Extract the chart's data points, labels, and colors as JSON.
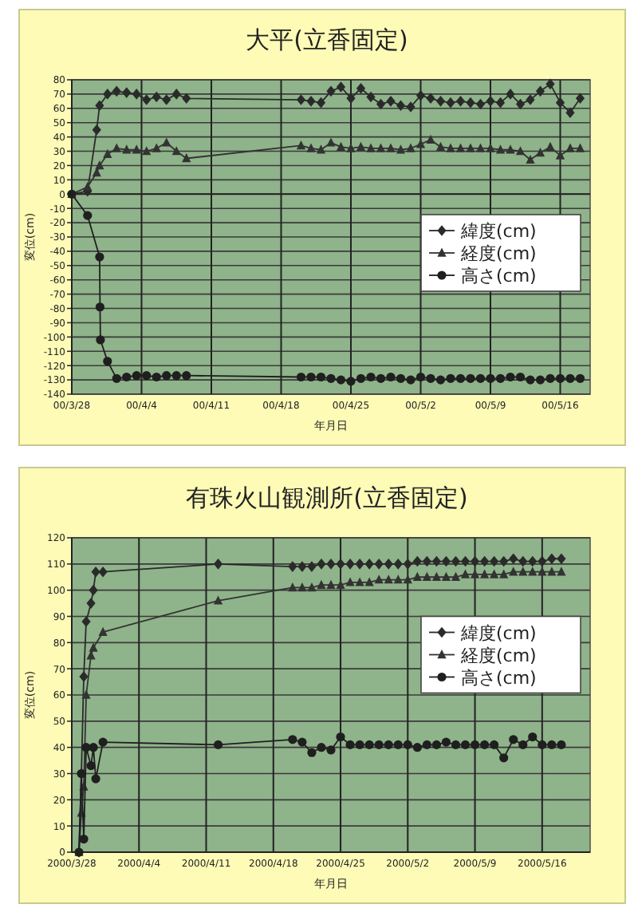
{
  "chart_data": [
    {
      "type": "line",
      "title": "大平(立香固定)",
      "xlabel": "年月日",
      "ylabel": "変位(cm)",
      "legend": "right",
      "grid": true,
      "xlim": [
        "2000-03-28",
        "2000-05-19"
      ],
      "ylim": [
        -140,
        80
      ],
      "xticks": [
        {
          "value": "2000-03-28",
          "label": "00/3/28"
        },
        {
          "value": "2000-04-04",
          "label": "00/4/4"
        },
        {
          "value": "2000-04-11",
          "label": "00/4/11"
        },
        {
          "value": "2000-04-18",
          "label": "00/4/18"
        },
        {
          "value": "2000-04-25",
          "label": "00/4/25"
        },
        {
          "value": "2000-05-02",
          "label": "00/5/2"
        },
        {
          "value": "2000-05-09",
          "label": "00/5/9"
        },
        {
          "value": "2000-05-16",
          "label": "00/5/16"
        }
      ],
      "yticks": [
        80,
        70,
        60,
        50,
        40,
        30,
        20,
        10,
        0,
        -10,
        -20,
        -30,
        -40,
        -50,
        -60,
        -70,
        -80,
        -90,
        -100,
        -110,
        -120,
        -130,
        -140
      ],
      "series": [
        {
          "name": "緯度(cm)",
          "color": "#2a2a2a",
          "marker": "diamond",
          "x": [
            "2000-03-28T00:00",
            "2000-03-29T14:00",
            "2000-03-30T12:00",
            "2000-03-30T19:00",
            "2000-03-31T14:00",
            "2000-04-01T12:00",
            "2000-04-02T12:00",
            "2000-04-03T12:00",
            "2000-04-04T12:00",
            "2000-04-05T12:00",
            "2000-04-06T12:00",
            "2000-04-07T12:00",
            "2000-04-08T12:00",
            "2000-04-20",
            "2000-04-21",
            "2000-04-22",
            "2000-04-23",
            "2000-04-24",
            "2000-04-25",
            "2000-04-26",
            "2000-04-27",
            "2000-04-28",
            "2000-04-29",
            "2000-04-30",
            "2000-05-01",
            "2000-05-02",
            "2000-05-03",
            "2000-05-04",
            "2000-05-05",
            "2000-05-06",
            "2000-05-07",
            "2000-05-08",
            "2000-05-09",
            "2000-05-10",
            "2000-05-11",
            "2000-05-12",
            "2000-05-13",
            "2000-05-14",
            "2000-05-15",
            "2000-05-16",
            "2000-05-17",
            "2000-05-18"
          ],
          "values": [
            0,
            2,
            45,
            62,
            70,
            72,
            71,
            70,
            66,
            68,
            66,
            70,
            67,
            66,
            65,
            64,
            72,
            75,
            67,
            74,
            68,
            63,
            65,
            62,
            61,
            69,
            67,
            65,
            64,
            65,
            64,
            63,
            65,
            64,
            70,
            63,
            66,
            72,
            77,
            64,
            57,
            67
          ]
        },
        {
          "name": "経度(cm)",
          "color": "#333333",
          "marker": "triangle",
          "x": [
            "2000-03-28T00:00",
            "2000-03-29T14:00",
            "2000-03-30T12:00",
            "2000-03-30T19:00",
            "2000-03-31T14:00",
            "2000-04-01T12:00",
            "2000-04-02T12:00",
            "2000-04-03T12:00",
            "2000-04-04T12:00",
            "2000-04-05T12:00",
            "2000-04-06T12:00",
            "2000-04-07T12:00",
            "2000-04-08T12:00",
            "2000-04-20",
            "2000-04-21",
            "2000-04-22",
            "2000-04-23",
            "2000-04-24",
            "2000-04-25",
            "2000-04-26",
            "2000-04-27",
            "2000-04-28",
            "2000-04-29",
            "2000-04-30",
            "2000-05-01",
            "2000-05-02",
            "2000-05-03",
            "2000-05-04",
            "2000-05-05",
            "2000-05-06",
            "2000-05-07",
            "2000-05-08",
            "2000-05-09",
            "2000-05-10",
            "2000-05-11",
            "2000-05-12",
            "2000-05-13",
            "2000-05-14",
            "2000-05-15",
            "2000-05-16",
            "2000-05-17",
            "2000-05-18"
          ],
          "values": [
            0,
            5,
            15,
            20,
            28,
            32,
            31,
            31,
            30,
            32,
            36,
            30,
            25,
            34,
            32,
            31,
            36,
            33,
            32,
            33,
            32,
            32,
            32,
            31,
            32,
            35,
            38,
            33,
            32,
            32,
            32,
            32,
            32,
            31,
            31,
            30,
            24,
            29,
            33,
            27,
            32,
            32
          ]
        },
        {
          "name": "高さ(cm)",
          "color": "#1f1f1f",
          "marker": "circle",
          "x": [
            "2000-03-28T00:00",
            "2000-03-29T14:00",
            "2000-03-30T19:00",
            "2000-03-30T20:00",
            "2000-03-30T21:00",
            "2000-03-31T14:00",
            "2000-04-01T12:00",
            "2000-04-02T12:00",
            "2000-04-03T12:00",
            "2000-04-04T12:00",
            "2000-04-05T12:00",
            "2000-04-06T12:00",
            "2000-04-07T12:00",
            "2000-04-08T12:00",
            "2000-04-20",
            "2000-04-21",
            "2000-04-22",
            "2000-04-23",
            "2000-04-24",
            "2000-04-25",
            "2000-04-26",
            "2000-04-27",
            "2000-04-28",
            "2000-04-29",
            "2000-04-30",
            "2000-05-01",
            "2000-05-02",
            "2000-05-03",
            "2000-05-04",
            "2000-05-05",
            "2000-05-06",
            "2000-05-07",
            "2000-05-08",
            "2000-05-09",
            "2000-05-10",
            "2000-05-11",
            "2000-05-12",
            "2000-05-13",
            "2000-05-14",
            "2000-05-15",
            "2000-05-16",
            "2000-05-17",
            "2000-05-18"
          ],
          "values": [
            0,
            -15,
            -44,
            -79,
            -102,
            -117,
            -129,
            -128,
            -127,
            -127,
            -128,
            -127,
            -127,
            -127,
            -128,
            -128,
            -128,
            -129,
            -130,
            -131,
            -129,
            -128,
            -129,
            -128,
            -129,
            -130,
            -128,
            -129,
            -130,
            -129,
            -129,
            -129,
            -129,
            -129,
            -129,
            -128,
            -128,
            -130,
            -130,
            -129,
            -129,
            -129,
            -129
          ]
        }
      ]
    },
    {
      "type": "line",
      "title": "有珠火山観測所(立香固定)",
      "xlabel": "年月日",
      "ylabel": "変位(cm)",
      "legend": "top right",
      "grid": true,
      "xlim": [
        "2000-03-28",
        "2000-05-21"
      ],
      "ylim": [
        0,
        120
      ],
      "xticks": [
        {
          "value": "2000-03-28",
          "label": "2000/3/28"
        },
        {
          "value": "2000-04-04",
          "label": "2000/4/4"
        },
        {
          "value": "2000-04-11",
          "label": "2000/4/11"
        },
        {
          "value": "2000-04-18",
          "label": "2000/4/18"
        },
        {
          "value": "2000-04-25",
          "label": "2000/4/25"
        },
        {
          "value": "2000-05-02",
          "label": "2000/5/2"
        },
        {
          "value": "2000-05-09",
          "label": "2000/5/9"
        },
        {
          "value": "2000-05-16",
          "label": "2000/5/16"
        }
      ],
      "yticks": [
        0,
        10,
        20,
        30,
        40,
        50,
        60,
        70,
        80,
        90,
        100,
        110,
        120
      ],
      "series": [
        {
          "name": "緯度(cm)",
          "color": "#2a2a2a",
          "marker": "diamond",
          "x": [
            "2000-03-28T18:00",
            "2000-03-29T00:00",
            "2000-03-29T06:00",
            "2000-03-29T12:00",
            "2000-03-30T00:00",
            "2000-03-30T06:00",
            "2000-03-30T12:00",
            "2000-03-31T06:00",
            "2000-04-12T06:00",
            "2000-04-20",
            "2000-04-21",
            "2000-04-22",
            "2000-04-23",
            "2000-04-24",
            "2000-04-25",
            "2000-04-26",
            "2000-04-27",
            "2000-04-28",
            "2000-04-29",
            "2000-04-30",
            "2000-05-01",
            "2000-05-02",
            "2000-05-03",
            "2000-05-04",
            "2000-05-05",
            "2000-05-06",
            "2000-05-07",
            "2000-05-08",
            "2000-05-09",
            "2000-05-10",
            "2000-05-11",
            "2000-05-12",
            "2000-05-13",
            "2000-05-14",
            "2000-05-15",
            "2000-05-16",
            "2000-05-17",
            "2000-05-18"
          ],
          "values": [
            0,
            30,
            67,
            88,
            95,
            100,
            107,
            107,
            110,
            109,
            109,
            109,
            110,
            110,
            110,
            110,
            110,
            110,
            110,
            110,
            110,
            110,
            111,
            111,
            111,
            111,
            111,
            111,
            111,
            111,
            111,
            111,
            112,
            111,
            111,
            111,
            112,
            112
          ]
        },
        {
          "name": "経度(cm)",
          "color": "#333333",
          "marker": "triangle",
          "x": [
            "2000-03-28T18:00",
            "2000-03-29T00:00",
            "2000-03-29T06:00",
            "2000-03-29T12:00",
            "2000-03-30T00:00",
            "2000-03-30T06:00",
            "2000-03-31T06:00",
            "2000-04-12T06:00",
            "2000-04-20",
            "2000-04-21",
            "2000-04-22",
            "2000-04-23",
            "2000-04-24",
            "2000-04-25",
            "2000-04-26",
            "2000-04-27",
            "2000-04-28",
            "2000-04-29",
            "2000-04-30",
            "2000-05-01",
            "2000-05-02",
            "2000-05-03",
            "2000-05-04",
            "2000-05-05",
            "2000-05-06",
            "2000-05-07",
            "2000-05-08",
            "2000-05-09",
            "2000-05-10",
            "2000-05-11",
            "2000-05-12",
            "2000-05-13",
            "2000-05-14",
            "2000-05-15",
            "2000-05-16",
            "2000-05-17",
            "2000-05-18"
          ],
          "values": [
            0,
            15,
            25,
            60,
            75,
            78,
            84,
            96,
            101,
            101,
            101,
            102,
            102,
            102,
            103,
            103,
            103,
            104,
            104,
            104,
            104,
            105,
            105,
            105,
            105,
            105,
            106,
            106,
            106,
            106,
            106,
            107,
            107,
            107,
            107,
            107,
            107
          ]
        },
        {
          "name": "高さ(cm)",
          "color": "#1f1f1f",
          "marker": "circle",
          "x": [
            "2000-03-28T18:00",
            "2000-03-29T00:00",
            "2000-03-29T06:00",
            "2000-03-29T12:00",
            "2000-03-30T00:00",
            "2000-03-30T06:00",
            "2000-03-30T12:00",
            "2000-03-31T06:00",
            "2000-04-12T06:00",
            "2000-04-20",
            "2000-04-21",
            "2000-04-22",
            "2000-04-23",
            "2000-04-24",
            "2000-04-25",
            "2000-04-26",
            "2000-04-27",
            "2000-04-28",
            "2000-04-29",
            "2000-04-30",
            "2000-05-01",
            "2000-05-02",
            "2000-05-03",
            "2000-05-04",
            "2000-05-05",
            "2000-05-06",
            "2000-05-07",
            "2000-05-08",
            "2000-05-09",
            "2000-05-10",
            "2000-05-11",
            "2000-05-12",
            "2000-05-13",
            "2000-05-14",
            "2000-05-15",
            "2000-05-16",
            "2000-05-17",
            "2000-05-18"
          ],
          "values": [
            0,
            30,
            5,
            40,
            33,
            40,
            28,
            42,
            41,
            43,
            42,
            38,
            40,
            39,
            44,
            41,
            41,
            41,
            41,
            41,
            41,
            41,
            40,
            41,
            41,
            42,
            41,
            41,
            41,
            41,
            41,
            36,
            43,
            41,
            44,
            41,
            41,
            41
          ]
        }
      ]
    }
  ]
}
